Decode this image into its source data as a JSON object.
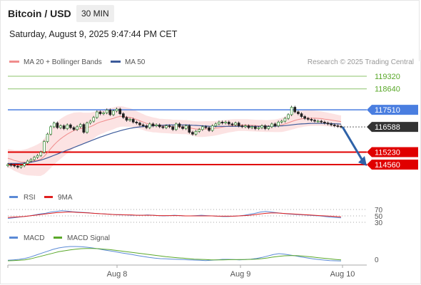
{
  "header": {
    "title": "Bitcoin / USD",
    "interval": "30 MIN",
    "datetime": "Saturday, August 9, 2025 9:47:44 PM CET"
  },
  "colors": {
    "bollinger_fill": "#fbd9d9",
    "ma20": "#f08c8c",
    "ma50": "#3c5a9a",
    "resistance": "#8cc36b",
    "pivot": "#4a7ee0",
    "support": "#e00000",
    "current": "#333333",
    "arrow": "#2e62a8",
    "rsi": "#5b8ad6",
    "rsi_9ma": "#e02020",
    "macd": "#5b8ad6",
    "macd_signal": "#5aa82a",
    "candle_up": "#2c8a2c",
    "candle_down": "#222222"
  },
  "chart_data": [
    {
      "type": "candlestick",
      "legend": [
        "MA 20 + Bollinger Bands",
        "MA 50"
      ],
      "legend_placement": "top-left",
      "credit": "Research © 2025 Trading Central",
      "x_ticks": [
        "Aug 8",
        "Aug 9",
        "Aug 10"
      ],
      "ylim": [
        114200,
        119700
      ],
      "levels": [
        {
          "value": 119320,
          "label": "119320",
          "kind": "resistance"
        },
        {
          "value": 118640,
          "label": "118640",
          "kind": "resistance"
        },
        {
          "value": 117510,
          "label": "117510",
          "kind": "pivot"
        },
        {
          "value": 116588,
          "label": "116588",
          "kind": "current"
        },
        {
          "value": 115230,
          "label": "115230",
          "kind": "support"
        },
        {
          "value": 114560,
          "label": "114560",
          "kind": "support"
        }
      ],
      "close": [
        114560,
        114520,
        114480,
        114420,
        114500,
        114610,
        114750,
        114830,
        114950,
        115050,
        115230,
        115800,
        116200,
        116600,
        116800,
        116550,
        116650,
        116500,
        116700,
        116550,
        116450,
        116600,
        116720,
        116300,
        116800,
        116900,
        117100,
        117400,
        117300,
        117350,
        117500,
        117250,
        117450,
        117550,
        117300,
        117100,
        116950,
        117000,
        116850,
        116800,
        116700,
        116650,
        116550,
        116750,
        116650,
        116700,
        116600,
        116550,
        116650,
        116600,
        116450,
        116750,
        116600,
        116500,
        116650,
        116300,
        116200,
        116350,
        116450,
        116600,
        116550,
        116400,
        116650,
        116750,
        116850,
        116800,
        116850,
        116750,
        116700,
        116800,
        116650,
        116600,
        116650,
        116550,
        116600,
        116500,
        116550,
        116650,
        116500,
        116600,
        116750,
        116650,
        116850,
        116900,
        117050,
        117250,
        117650,
        117400,
        117300,
        117150,
        117050,
        117000,
        116950,
        116900,
        116900,
        116850,
        116800,
        116750,
        116700,
        116650,
        116620,
        116588
      ],
      "ma20": [
        114900,
        114850,
        114780,
        114740,
        114700,
        114690,
        114700,
        114730,
        114760,
        114800,
        114850,
        115000,
        115200,
        115420,
        115620,
        115800,
        115950,
        116080,
        116200,
        116300,
        116400,
        116450,
        116500,
        116520,
        116560,
        116600,
        116680,
        116780,
        116850,
        116900,
        116960,
        117000,
        117050,
        117120,
        117150,
        117150,
        117120,
        117100,
        117050,
        116990,
        116920,
        116850,
        116780,
        116740,
        116700,
        116680,
        116650,
        116640,
        116630,
        116620,
        116600,
        116600,
        116590,
        116580,
        116580,
        116550,
        116510,
        116480,
        116470,
        116470,
        116480,
        116490,
        116500,
        116520,
        116550,
        116580,
        116610,
        116640,
        116660,
        116680,
        116690,
        116690,
        116690,
        116680,
        116670,
        116660,
        116650,
        116650,
        116640,
        116640,
        116650,
        116650,
        116670,
        116700,
        116750,
        116810,
        116880,
        116940,
        116990,
        117020,
        117050,
        117060,
        117060,
        117060,
        117050,
        117040,
        117010,
        116990,
        116960,
        116930,
        116900,
        116880
      ],
      "ma50": [
        114620,
        114620,
        114620,
        114620,
        114630,
        114640,
        114660,
        114690,
        114720,
        114760,
        114800,
        114860,
        114920,
        114990,
        115060,
        115130,
        115200,
        115270,
        115340,
        115410,
        115480,
        115550,
        115620,
        115690,
        115760,
        115830,
        115900,
        115970,
        116040,
        116100,
        116160,
        116220,
        116280,
        116330,
        116380,
        116430,
        116470,
        116510,
        116540,
        116570,
        116590,
        116610,
        116630,
        116640,
        116650,
        116660,
        116670,
        116680,
        116690,
        116700,
        116700,
        116700,
        116700,
        116700,
        116700,
        116690,
        116680,
        116670,
        116660,
        116650,
        116640,
        116630,
        116620,
        116620,
        116620,
        116620,
        116620,
        116620,
        116620,
        116620,
        116620,
        116620,
        116620,
        116620,
        116620,
        116620,
        116620,
        116620,
        116620,
        116620,
        116620,
        116630,
        116640,
        116650,
        116660,
        116680,
        116700,
        116720,
        116740,
        116750,
        116760,
        116770,
        116780,
        116780,
        116780,
        116780,
        116780,
        116780,
        116770,
        116760,
        116750,
        116740
      ],
      "bb_width": [
        500,
        520,
        560,
        600,
        640,
        680,
        720,
        760,
        800,
        850,
        900,
        960,
        1000,
        1040,
        1060,
        1080,
        1080,
        1060,
        1040,
        1000,
        960,
        920,
        880,
        840,
        800,
        760,
        720,
        680,
        660,
        640,
        620,
        600,
        590,
        580,
        560,
        540,
        520,
        500,
        480,
        460,
        440,
        430,
        420,
        410,
        400,
        390,
        380,
        380,
        380,
        380,
        380,
        380,
        380,
        380,
        380,
        390,
        400,
        410,
        420,
        420,
        420,
        410,
        400,
        390,
        380,
        370,
        360,
        350,
        340,
        330,
        320,
        320,
        320,
        320,
        320,
        320,
        320,
        320,
        320,
        320,
        330,
        340,
        360,
        380,
        400,
        420,
        440,
        450,
        450,
        450,
        440,
        430,
        420,
        410,
        400,
        390,
        380,
        370,
        360,
        350,
        340,
        330
      ]
    },
    {
      "type": "line",
      "legend": [
        "RSI",
        "9MA"
      ],
      "y_ticks": [
        "70",
        "50",
        "30"
      ],
      "ylim": [
        20,
        80
      ],
      "rsi": [
        42,
        44,
        46,
        48,
        50,
        53,
        56,
        58,
        62,
        64,
        66,
        65,
        63,
        62,
        61,
        60,
        58,
        57,
        56,
        55,
        54,
        53,
        53,
        52,
        52,
        52,
        53,
        52,
        51,
        50,
        51,
        52,
        51,
        50,
        50,
        51,
        52,
        51,
        50,
        49,
        48,
        48,
        49,
        50,
        52,
        55,
        58,
        62,
        64,
        62,
        60,
        58,
        56,
        55,
        54,
        53,
        52,
        51,
        50,
        48,
        46,
        45,
        44
      ],
      "ma9": [
        45,
        46,
        47,
        48,
        50,
        52,
        54,
        56,
        58,
        60,
        61,
        62,
        62,
        61,
        60,
        59,
        58,
        57,
        56,
        55,
        54,
        54,
        53,
        53,
        52,
        52,
        52,
        52,
        51,
        51,
        51,
        51,
        51,
        50,
        50,
        50,
        50,
        50,
        50,
        49,
        49,
        49,
        49,
        50,
        51,
        52,
        54,
        56,
        58,
        59,
        59,
        58,
        57,
        56,
        55,
        54,
        53,
        52,
        51,
        50,
        49,
        48,
        47
      ]
    },
    {
      "type": "line",
      "legend": [
        "MACD",
        "MACD Signal"
      ],
      "y_ticks": [
        "0"
      ],
      "ylim": [
        -100,
        400
      ],
      "macd": [
        10,
        20,
        30,
        50,
        80,
        120,
        160,
        200,
        240,
        270,
        290,
        300,
        300,
        295,
        285,
        270,
        250,
        230,
        210,
        190,
        170,
        150,
        130,
        110,
        90,
        70,
        55,
        45,
        40,
        35,
        30,
        25,
        20,
        15,
        10,
        5,
        10,
        20,
        30,
        30,
        25,
        20,
        25,
        35,
        50,
        70,
        100,
        130,
        150,
        140,
        120,
        100,
        80,
        60,
        40,
        25,
        15,
        5,
        0,
        -5
      ],
      "signal": [
        0,
        5,
        10,
        20,
        40,
        70,
        100,
        130,
        160,
        190,
        210,
        230,
        245,
        255,
        260,
        260,
        255,
        245,
        235,
        220,
        205,
        190,
        175,
        160,
        145,
        130,
        115,
        100,
        85,
        75,
        65,
        55,
        45,
        35,
        30,
        25,
        20,
        20,
        20,
        22,
        24,
        25,
        27,
        30,
        35,
        45,
        60,
        80,
        95,
        105,
        110,
        108,
        100,
        90,
        78,
        65,
        52,
        40,
        28,
        18
      ]
    }
  ]
}
